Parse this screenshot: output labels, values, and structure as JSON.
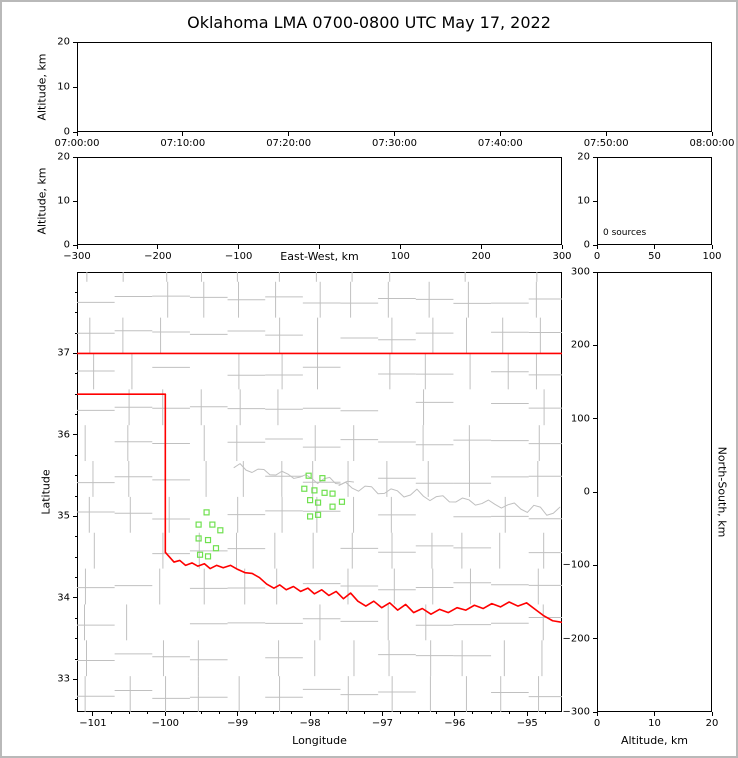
{
  "title": "Oklahoma LMA 0700-0800 UTC May 17, 2022",
  "colors": {
    "state_border": "#ff0000",
    "county_lines": "#c0c0c0",
    "sources": "#6fe04f",
    "axis": "#000000"
  },
  "panels": {
    "time_height": {
      "ylabel": "Altitude, km",
      "yticks": [
        0,
        10,
        20
      ],
      "xticks": [
        "07:00:00",
        "07:10:00",
        "07:20:00",
        "07:30:00",
        "07:40:00",
        "07:50:00",
        "08:00:00"
      ]
    },
    "ew_height": {
      "ylabel": "Altitude, km",
      "xlabel": "East-West, km",
      "yticks": [
        0,
        10,
        20
      ],
      "xticks": [
        -300,
        -200,
        -100,
        100,
        200,
        300
      ],
      "xrange": [
        -300,
        300
      ]
    },
    "alt_histogram": {
      "annotation": "0 sources",
      "xticks": [
        0,
        50,
        100
      ],
      "xrange": [
        0,
        100
      ],
      "yticks": [
        0,
        10,
        20
      ]
    },
    "plan_view": {
      "xlabel": "Longitude",
      "ylabel": "Latitude",
      "xticks": [
        -101,
        -100,
        -99,
        -98,
        -97,
        -96,
        -95
      ],
      "yticks": [
        33,
        34,
        35,
        36,
        37
      ]
    },
    "ns_height": {
      "xlabel": "Altitude, km",
      "ylabel_right": "North-South, km",
      "xticks": [
        0,
        10,
        20
      ],
      "xrange": [
        0,
        20
      ],
      "yticks": [
        300,
        200,
        100,
        0,
        -100,
        -200,
        -300
      ],
      "yrange": [
        -300,
        300
      ]
    }
  },
  "chart_data": [
    {
      "type": "scatter",
      "panel": "time_height",
      "ylabel": "Altitude, km",
      "ylim": [
        0,
        20
      ],
      "xticklabels": [
        "07:00:00",
        "07:10:00",
        "07:20:00",
        "07:30:00",
        "07:40:00",
        "07:50:00",
        "08:00:00"
      ],
      "points": []
    },
    {
      "type": "scatter",
      "panel": "ew_height",
      "xlabel": "East-West, km",
      "ylabel": "Altitude, km",
      "xlim": [
        -300,
        300
      ],
      "ylim": [
        0,
        20
      ],
      "points": []
    },
    {
      "type": "histogram",
      "panel": "alt_histogram",
      "xlim": [
        0,
        100
      ],
      "ylim": [
        0,
        20
      ],
      "annotation": "0 sources",
      "bars": []
    },
    {
      "type": "scatter",
      "panel": "plan_view",
      "xlabel": "Longitude",
      "ylabel": "Latitude",
      "xlim": [
        -101.22,
        -94.52
      ],
      "ylim": [
        32.6,
        38.0
      ],
      "marker": "open-square",
      "marker_color": "#6fe04f",
      "sources": [
        [
          -99.43,
          35.05
        ],
        [
          -99.54,
          34.9
        ],
        [
          -99.35,
          34.9
        ],
        [
          -99.24,
          34.83
        ],
        [
          -99.54,
          34.73
        ],
        [
          -99.41,
          34.71
        ],
        [
          -99.3,
          34.61
        ],
        [
          -99.52,
          34.53
        ],
        [
          -99.41,
          34.51
        ],
        [
          -98.02,
          35.5
        ],
        [
          -97.83,
          35.47
        ],
        [
          -98.08,
          35.34
        ],
        [
          -97.94,
          35.32
        ],
        [
          -97.8,
          35.29
        ],
        [
          -97.69,
          35.28
        ],
        [
          -98.0,
          35.2
        ],
        [
          -97.89,
          35.17
        ],
        [
          -97.56,
          35.18
        ],
        [
          -97.69,
          35.12
        ],
        [
          -98.0,
          35.0
        ],
        [
          -97.89,
          35.02
        ]
      ],
      "state_border": [
        [
          [
            -101.22,
            37.0
          ],
          [
            -94.52,
            37.0
          ]
        ],
        [
          [
            -101.22,
            36.5
          ],
          [
            -100.0,
            36.5
          ]
        ],
        [
          [
            -100.0,
            36.5
          ],
          [
            -100.0,
            34.56
          ]
        ],
        [
          [
            -100.0,
            34.56
          ],
          [
            -99.94,
            34.5
          ],
          [
            -99.88,
            34.44
          ],
          [
            -99.8,
            34.46
          ],
          [
            -99.72,
            34.4
          ],
          [
            -99.63,
            34.43
          ],
          [
            -99.55,
            34.39
          ],
          [
            -99.46,
            34.42
          ],
          [
            -99.38,
            34.36
          ],
          [
            -99.29,
            34.4
          ],
          [
            -99.2,
            34.37
          ],
          [
            -99.1,
            34.4
          ],
          [
            -99.0,
            34.35
          ],
          [
            -98.9,
            34.31
          ],
          [
            -98.8,
            34.3
          ],
          [
            -98.7,
            34.25
          ],
          [
            -98.6,
            34.17
          ],
          [
            -98.5,
            34.12
          ],
          [
            -98.42,
            34.16
          ],
          [
            -98.33,
            34.1
          ],
          [
            -98.23,
            34.14
          ],
          [
            -98.13,
            34.08
          ],
          [
            -98.03,
            34.12
          ],
          [
            -97.94,
            34.05
          ],
          [
            -97.84,
            34.1
          ],
          [
            -97.74,
            34.03
          ],
          [
            -97.64,
            34.08
          ],
          [
            -97.54,
            33.99
          ],
          [
            -97.44,
            34.06
          ],
          [
            -97.34,
            33.96
          ],
          [
            -97.23,
            33.9
          ],
          [
            -97.12,
            33.96
          ],
          [
            -97.01,
            33.88
          ],
          [
            -96.9,
            33.94
          ],
          [
            -96.79,
            33.85
          ],
          [
            -96.68,
            33.92
          ],
          [
            -96.57,
            33.82
          ],
          [
            -96.45,
            33.87
          ],
          [
            -96.33,
            33.8
          ],
          [
            -96.21,
            33.86
          ],
          [
            -96.09,
            33.82
          ],
          [
            -95.97,
            33.88
          ],
          [
            -95.85,
            33.85
          ],
          [
            -95.73,
            33.91
          ],
          [
            -95.61,
            33.87
          ],
          [
            -95.49,
            33.93
          ],
          [
            -95.37,
            33.89
          ],
          [
            -95.25,
            33.95
          ],
          [
            -95.13,
            33.9
          ],
          [
            -95.01,
            33.94
          ],
          [
            -94.89,
            33.86
          ],
          [
            -94.77,
            33.78
          ],
          [
            -94.65,
            33.72
          ],
          [
            -94.52,
            33.7
          ]
        ]
      ]
    },
    {
      "type": "scatter",
      "panel": "ns_height",
      "xlabel": "Altitude, km",
      "ylabel": "North-South, km",
      "xlim": [
        0,
        20
      ],
      "ylim": [
        -300,
        300
      ],
      "points": []
    }
  ]
}
